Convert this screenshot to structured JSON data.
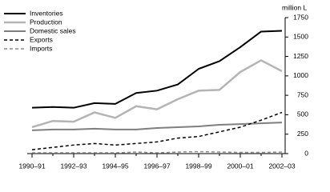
{
  "chart_data": {
    "type": "line",
    "y_unit_label": "million L",
    "categories": [
      "1990–91",
      null,
      "1992–93",
      null,
      "1994–95",
      null,
      "1996–97",
      null,
      "1998–99",
      null,
      "2000–01",
      null,
      "2002–03"
    ],
    "series": [
      {
        "name": "Inventories",
        "color": "#000000",
        "width": 2,
        "dashed": false,
        "values": [
          590,
          600,
          590,
          650,
          640,
          780,
          810,
          890,
          1090,
          1190,
          1370,
          1570,
          1580
        ]
      },
      {
        "name": "Production",
        "color": "#b4b4b4",
        "width": 2.5,
        "dashed": false,
        "values": [
          340,
          420,
          410,
          530,
          460,
          610,
          570,
          700,
          810,
          820,
          1050,
          1200,
          1060
        ]
      },
      {
        "name": "Domestic sales",
        "color": "#7f7f7f",
        "width": 2,
        "dashed": false,
        "values": [
          300,
          310,
          310,
          320,
          310,
          310,
          330,
          340,
          350,
          370,
          380,
          390,
          400
        ]
      },
      {
        "name": "Exports",
        "color": "#000000",
        "width": 1.5,
        "dashed": true,
        "values": [
          50,
          80,
          110,
          130,
          110,
          130,
          150,
          200,
          220,
          280,
          340,
          430,
          530
        ]
      },
      {
        "name": "Imports",
        "color": "#8c8c8c",
        "width": 1.5,
        "dashed": true,
        "values": [
          10,
          10,
          10,
          10,
          10,
          20,
          10,
          20,
          25,
          20,
          15,
          15,
          20
        ]
      }
    ],
    "ylim": [
      0,
      1750
    ],
    "yticks": [
      0,
      250,
      500,
      750,
      1000,
      1250,
      1500,
      1750
    ],
    "legend": "top-left"
  }
}
